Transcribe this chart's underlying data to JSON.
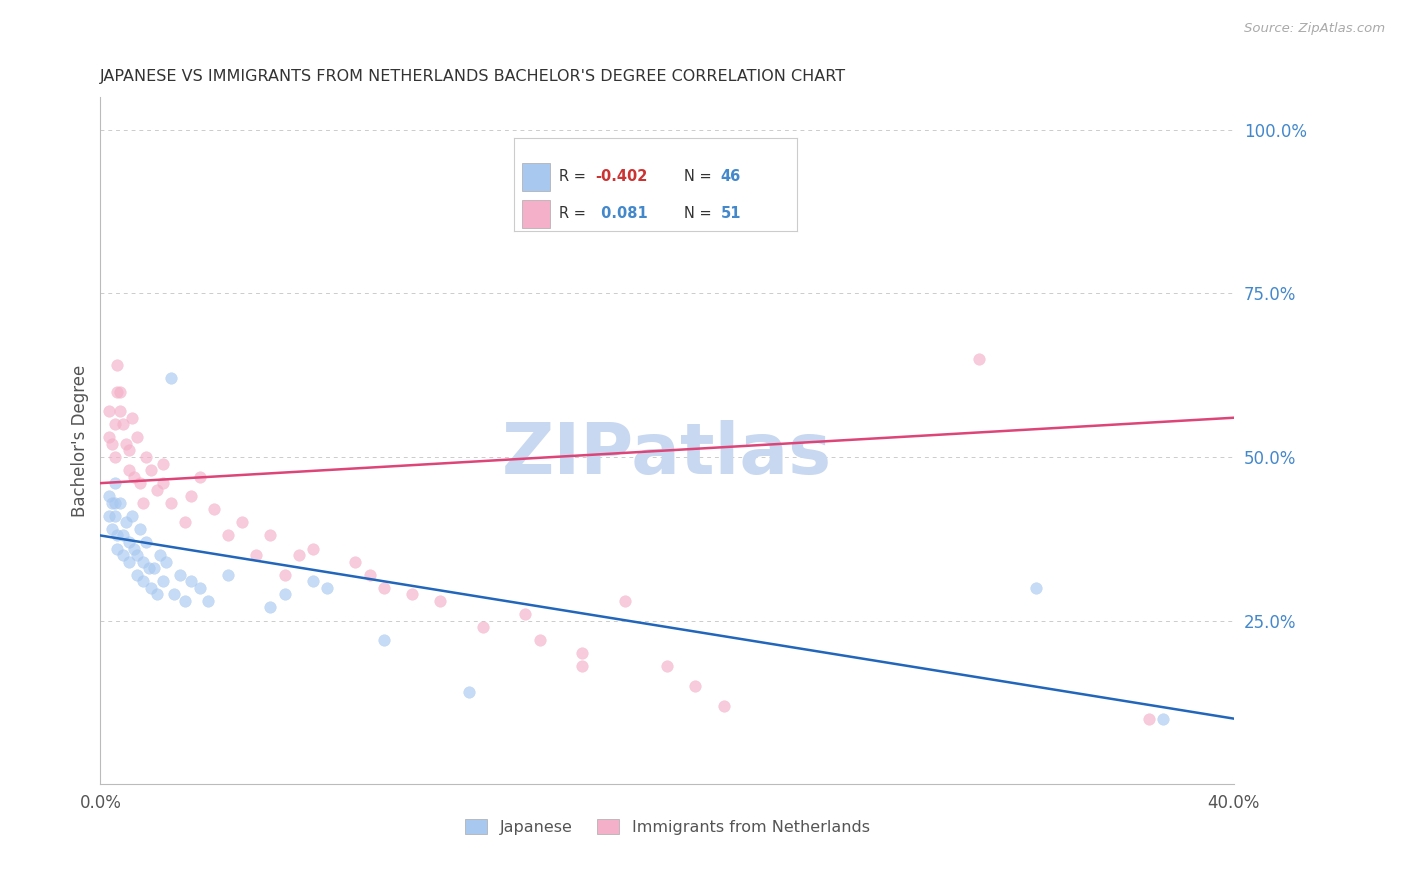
{
  "title": "JAPANESE VS IMMIGRANTS FROM NETHERLANDS BACHELOR'S DEGREE CORRELATION CHART",
  "source": "Source: ZipAtlas.com",
  "ylabel": "Bachelor's Degree",
  "watermark": "ZIPatlas",
  "legend_label_blue": "Japanese",
  "legend_label_pink": "Immigrants from Netherlands",
  "xlim": [
    0.0,
    0.4
  ],
  "ylim": [
    0.0,
    1.05
  ],
  "x_ticks": [
    0.0,
    0.08,
    0.16,
    0.24,
    0.32,
    0.4
  ],
  "x_tick_labels": [
    "0.0%",
    "",
    "",
    "",
    "",
    "40.0%"
  ],
  "y_ticks_right": [
    0.0,
    0.25,
    0.5,
    0.75,
    1.0
  ],
  "y_tick_labels_right": [
    "",
    "25.0%",
    "50.0%",
    "75.0%",
    "100.0%"
  ],
  "blue_scatter_x": [
    0.003,
    0.003,
    0.004,
    0.004,
    0.005,
    0.005,
    0.005,
    0.006,
    0.006,
    0.007,
    0.008,
    0.008,
    0.009,
    0.01,
    0.01,
    0.011,
    0.012,
    0.013,
    0.013,
    0.014,
    0.015,
    0.015,
    0.016,
    0.017,
    0.018,
    0.019,
    0.02,
    0.021,
    0.022,
    0.023,
    0.025,
    0.026,
    0.028,
    0.03,
    0.032,
    0.035,
    0.038,
    0.045,
    0.06,
    0.065,
    0.075,
    0.08,
    0.1,
    0.13,
    0.33,
    0.375
  ],
  "blue_scatter_y": [
    0.44,
    0.41,
    0.43,
    0.39,
    0.46,
    0.43,
    0.41,
    0.38,
    0.36,
    0.43,
    0.35,
    0.38,
    0.4,
    0.34,
    0.37,
    0.41,
    0.36,
    0.32,
    0.35,
    0.39,
    0.31,
    0.34,
    0.37,
    0.33,
    0.3,
    0.33,
    0.29,
    0.35,
    0.31,
    0.34,
    0.62,
    0.29,
    0.32,
    0.28,
    0.31,
    0.3,
    0.28,
    0.32,
    0.27,
    0.29,
    0.31,
    0.3,
    0.22,
    0.14,
    0.3,
    0.1
  ],
  "pink_scatter_x": [
    0.003,
    0.003,
    0.004,
    0.005,
    0.005,
    0.006,
    0.006,
    0.007,
    0.007,
    0.008,
    0.009,
    0.01,
    0.01,
    0.011,
    0.012,
    0.013,
    0.014,
    0.015,
    0.016,
    0.018,
    0.02,
    0.022,
    0.022,
    0.025,
    0.03,
    0.032,
    0.035,
    0.04,
    0.045,
    0.05,
    0.055,
    0.06,
    0.065,
    0.07,
    0.075,
    0.09,
    0.095,
    0.1,
    0.11,
    0.12,
    0.135,
    0.15,
    0.155,
    0.17,
    0.17,
    0.185,
    0.2,
    0.21,
    0.22,
    0.31,
    0.37
  ],
  "pink_scatter_y": [
    0.53,
    0.57,
    0.52,
    0.55,
    0.5,
    0.6,
    0.64,
    0.57,
    0.6,
    0.55,
    0.52,
    0.48,
    0.51,
    0.56,
    0.47,
    0.53,
    0.46,
    0.43,
    0.5,
    0.48,
    0.45,
    0.49,
    0.46,
    0.43,
    0.4,
    0.44,
    0.47,
    0.42,
    0.38,
    0.4,
    0.35,
    0.38,
    0.32,
    0.35,
    0.36,
    0.34,
    0.32,
    0.3,
    0.29,
    0.28,
    0.24,
    0.26,
    0.22,
    0.18,
    0.2,
    0.28,
    0.18,
    0.15,
    0.12,
    0.65,
    0.1
  ],
  "blue_line_x": [
    0.0,
    0.4
  ],
  "blue_line_y": [
    0.38,
    0.1
  ],
  "pink_line_x": [
    0.0,
    0.4
  ],
  "pink_line_y": [
    0.46,
    0.56
  ],
  "blue_color": "#a8c8f0",
  "pink_color": "#f4b0c8",
  "blue_line_color": "#2266bb",
  "pink_line_color": "#dd4477",
  "bg_color": "#ffffff",
  "grid_color": "#cccccc",
  "title_color": "#333333",
  "axis_label_color": "#555555",
  "right_axis_color": "#4488cc",
  "watermark_color": "#c8d8f0",
  "r_value_blue": "-0.402",
  "n_value_blue": "46",
  "r_value_pink": "0.081",
  "n_value_pink": "51",
  "scatter_size": 70,
  "scatter_alpha": 0.65
}
